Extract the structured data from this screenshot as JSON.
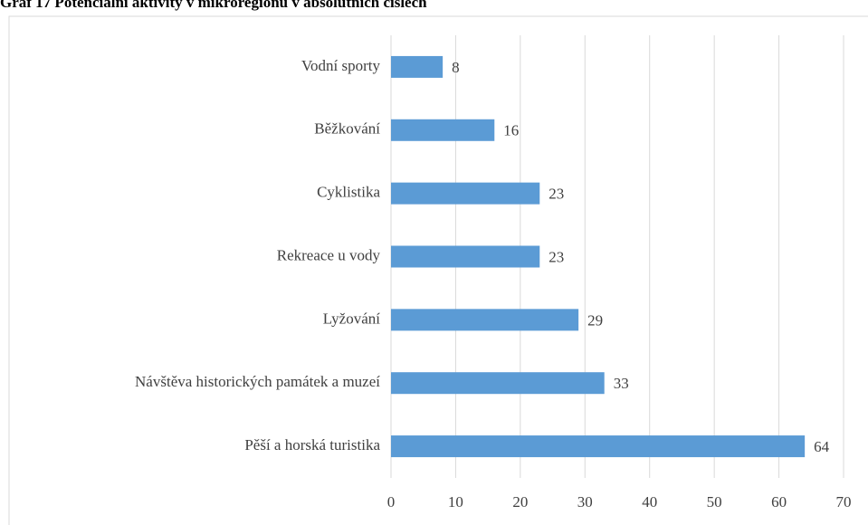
{
  "chart_data": {
    "type": "bar",
    "orientation": "horizontal",
    "title": "Graf 17 Potenciální aktivity v mikroregionu v absolutních číslech",
    "categories": [
      "Vodní sporty",
      "Běžkování",
      "Cyklistika",
      "Rekreace u vody",
      "Lyžování",
      "Návštěva historických památek a muzeí",
      "Pěší a horská turistika"
    ],
    "values": [
      8,
      16,
      23,
      23,
      29,
      33,
      64
    ],
    "color": "#5b9bd5",
    "xlim": [
      0,
      70
    ],
    "xticks": [
      0,
      10,
      20,
      30,
      40,
      50,
      60,
      70
    ],
    "grid": true
  }
}
